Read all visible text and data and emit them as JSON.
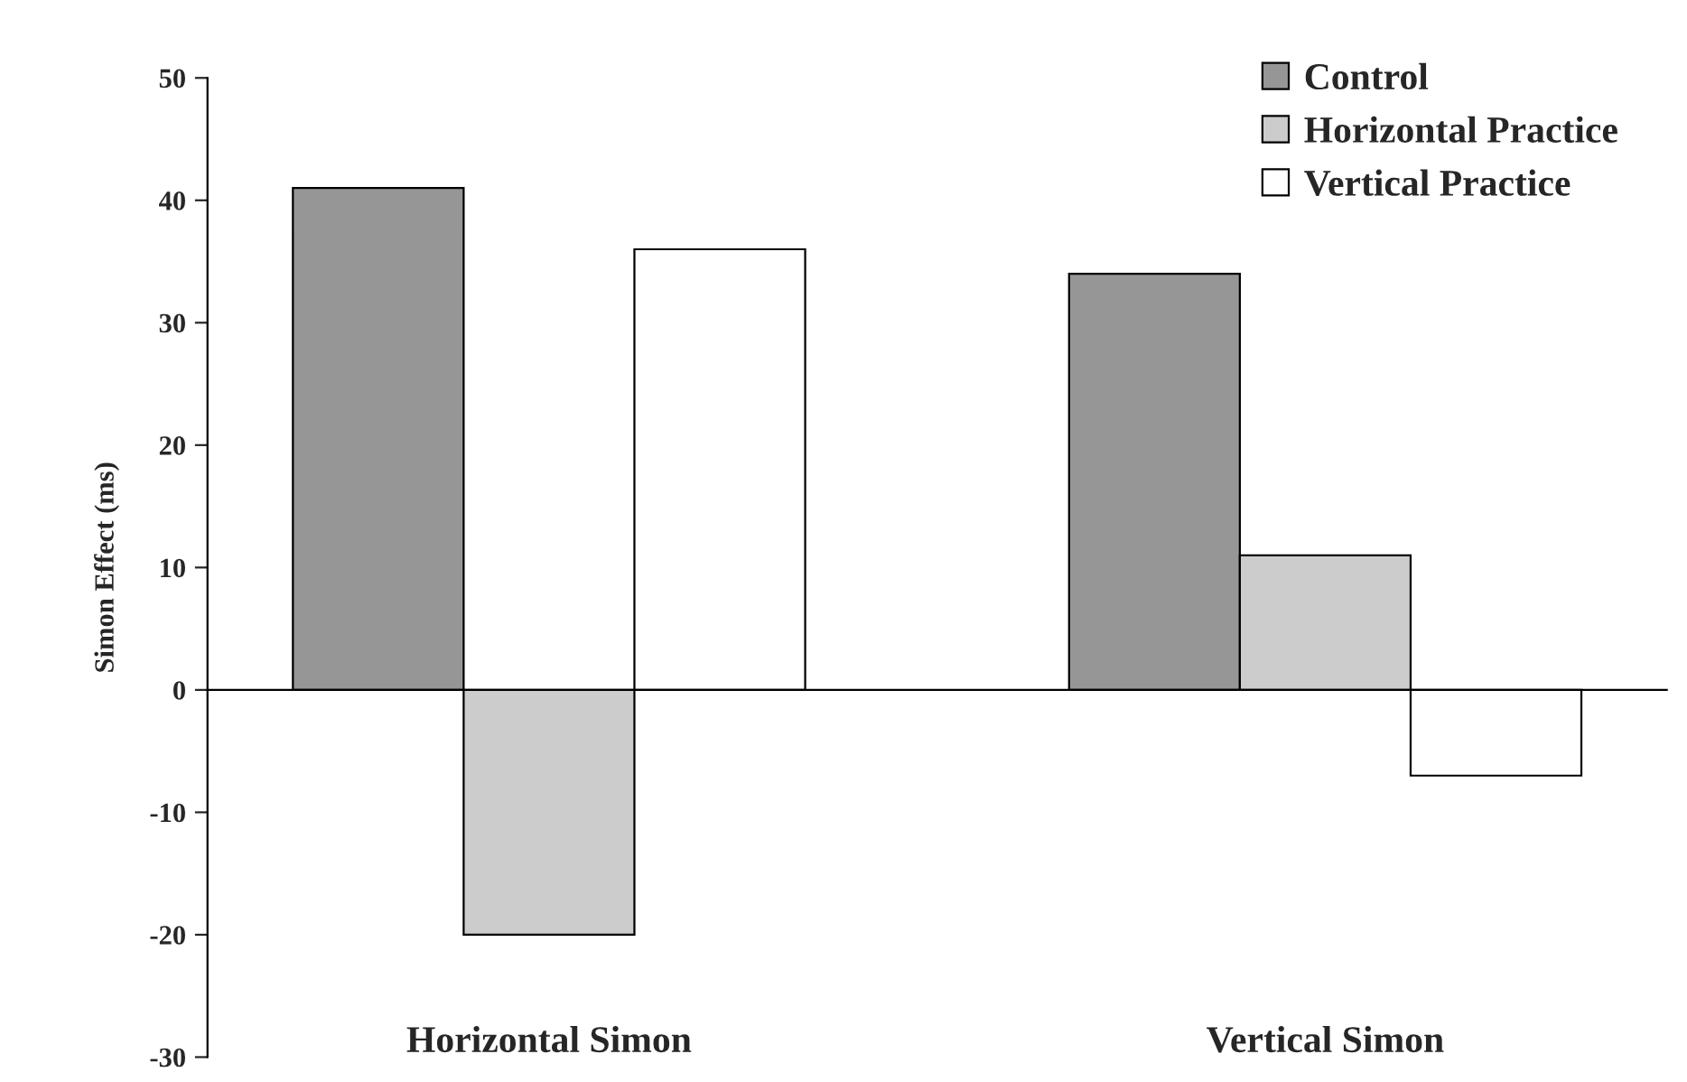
{
  "chart_data": {
    "type": "bar",
    "ylabel": "Simon Effect (ms)",
    "categories": [
      "Horizontal Simon",
      "Vertical Simon"
    ],
    "series": [
      {
        "name": "Control",
        "color": "#969696",
        "values": [
          41,
          34
        ]
      },
      {
        "name": "Horizontal Practice",
        "color": "#cccccc",
        "values": [
          -20,
          11
        ]
      },
      {
        "name": "Vertical Practice",
        "color": "#ffffff",
        "values": [
          36,
          -7
        ]
      }
    ],
    "ylim": [
      -30,
      50
    ],
    "yticks": [
      50,
      40,
      30,
      20,
      10,
      0,
      -10,
      -20,
      -30
    ],
    "legend": "top right"
  }
}
